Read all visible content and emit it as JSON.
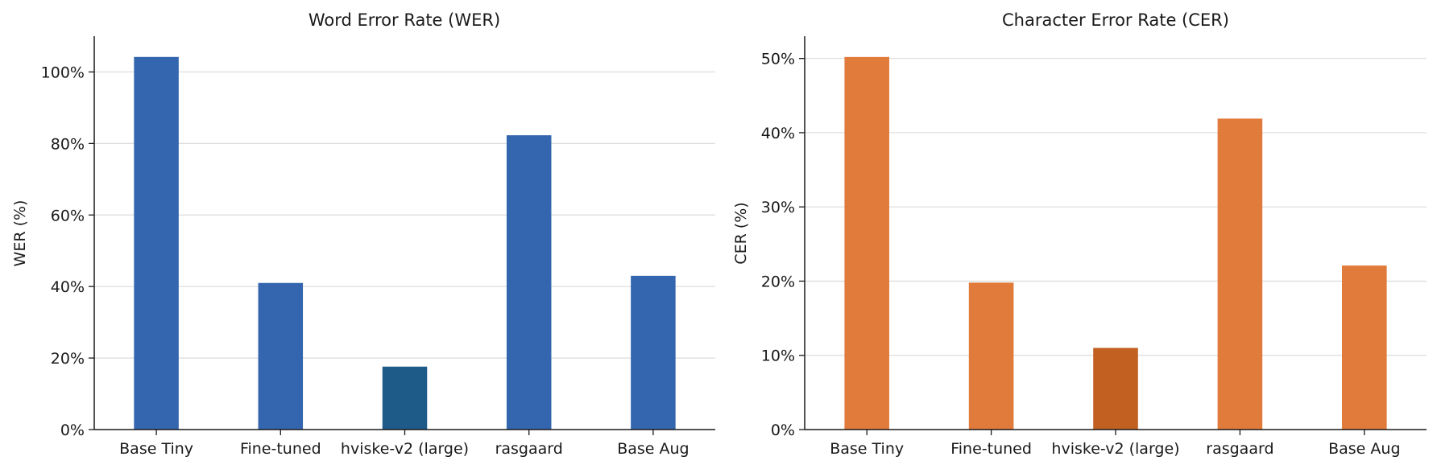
{
  "chart_data": [
    {
      "type": "bar",
      "title": "Word Error Rate (WER)",
      "ylabel": "WER (%)",
      "xlabel": "",
      "categories": [
        "Base Tiny",
        "Fine-tuned",
        "hviske-v2 (large)",
        "rasgaard",
        "Base Aug"
      ],
      "values": [
        104.2,
        41.0,
        17.6,
        82.3,
        43.0
      ],
      "colors": [
        "#3366ae",
        "#3366ae",
        "#1f5b88",
        "#3366ae",
        "#3366ae"
      ],
      "ylim": [
        0,
        110
      ],
      "yticks": [
        0,
        20,
        40,
        60,
        80,
        100
      ],
      "ytick_labels": [
        "0%",
        "20%",
        "40%",
        "60%",
        "80%",
        "100%"
      ],
      "grid": "horizontal"
    },
    {
      "type": "bar",
      "title": "Character Error Rate (CER)",
      "ylabel": "CER (%)",
      "xlabel": "",
      "categories": [
        "Base Tiny",
        "Fine-tuned",
        "hviske-v2 (large)",
        "rasgaard",
        "Base Aug"
      ],
      "values": [
        50.2,
        19.8,
        11.0,
        41.9,
        22.1
      ],
      "colors": [
        "#e07b3b",
        "#e07b3b",
        "#c26022",
        "#e07b3b",
        "#e07b3b"
      ],
      "ylim": [
        0,
        53
      ],
      "yticks": [
        0,
        10,
        20,
        30,
        40,
        50
      ],
      "ytick_labels": [
        "0%",
        "10%",
        "20%",
        "30%",
        "40%",
        "50%"
      ],
      "grid": "horizontal"
    }
  ]
}
